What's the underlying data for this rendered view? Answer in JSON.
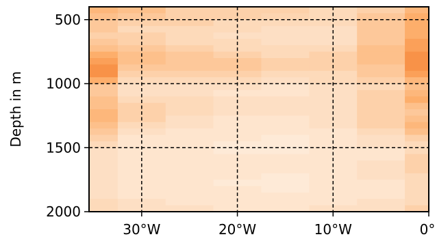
{
  "chart_data": {
    "type": "heatmap",
    "title": "",
    "xlabel": "",
    "ylabel": "Depth in m",
    "xlim": [
      -35.5,
      0
    ],
    "ylim": [
      2000,
      400
    ],
    "y_inverted": true,
    "grid": true,
    "colormap": "Oranges",
    "value_range": [
      0,
      1
    ],
    "x_ticks": [
      {
        "value": -30,
        "label": "30°W"
      },
      {
        "value": -20,
        "label": "20°W"
      },
      {
        "value": -10,
        "label": "10°W"
      },
      {
        "value": 0,
        "label": "0°"
      }
    ],
    "y_ticks": [
      {
        "value": 500,
        "label": "500"
      },
      {
        "value": 1000,
        "label": "1000"
      },
      {
        "value": 1500,
        "label": "1500"
      },
      {
        "value": 2000,
        "label": "2000"
      }
    ],
    "x": [
      -35,
      -30,
      -25,
      -20,
      -15,
      -10,
      -5,
      0
    ],
    "y": [
      425,
      475,
      525,
      575,
      625,
      675,
      725,
      775,
      825,
      875,
      925,
      975,
      1025,
      1075,
      1125,
      1175,
      1225,
      1275,
      1325,
      1375,
      1425,
      1475,
      1525,
      1575,
      1625,
      1675,
      1725,
      1775,
      1825,
      1875,
      1925,
      1975
    ],
    "z": [
      [
        0.45,
        0.4,
        0.3,
        0.3,
        0.3,
        0.25,
        0.3,
        0.45
      ],
      [
        0.4,
        0.35,
        0.3,
        0.3,
        0.28,
        0.25,
        0.35,
        0.5
      ],
      [
        0.35,
        0.3,
        0.3,
        0.25,
        0.25,
        0.25,
        0.35,
        0.5
      ],
      [
        0.35,
        0.25,
        0.25,
        0.25,
        0.2,
        0.2,
        0.35,
        0.5
      ],
      [
        0.3,
        0.3,
        0.25,
        0.2,
        0.2,
        0.2,
        0.35,
        0.5
      ],
      [
        0.35,
        0.3,
        0.25,
        0.25,
        0.2,
        0.2,
        0.35,
        0.55
      ],
      [
        0.4,
        0.35,
        0.3,
        0.25,
        0.25,
        0.25,
        0.4,
        0.55
      ],
      [
        0.5,
        0.4,
        0.35,
        0.3,
        0.25,
        0.3,
        0.4,
        0.6
      ],
      [
        0.55,
        0.4,
        0.35,
        0.35,
        0.3,
        0.3,
        0.4,
        0.6
      ],
      [
        0.6,
        0.35,
        0.35,
        0.35,
        0.3,
        0.3,
        0.35,
        0.6
      ],
      [
        0.6,
        0.3,
        0.3,
        0.3,
        0.25,
        0.25,
        0.35,
        0.55
      ],
      [
        0.5,
        0.25,
        0.25,
        0.25,
        0.2,
        0.25,
        0.3,
        0.45
      ],
      [
        0.35,
        0.2,
        0.2,
        0.2,
        0.15,
        0.2,
        0.25,
        0.4
      ],
      [
        0.35,
        0.2,
        0.2,
        0.15,
        0.15,
        0.2,
        0.3,
        0.45
      ],
      [
        0.4,
        0.25,
        0.25,
        0.2,
        0.2,
        0.2,
        0.3,
        0.5
      ],
      [
        0.4,
        0.3,
        0.25,
        0.2,
        0.2,
        0.2,
        0.3,
        0.4
      ],
      [
        0.45,
        0.3,
        0.25,
        0.2,
        0.2,
        0.2,
        0.3,
        0.35
      ],
      [
        0.45,
        0.3,
        0.2,
        0.15,
        0.15,
        0.2,
        0.3,
        0.4
      ],
      [
        0.4,
        0.25,
        0.2,
        0.15,
        0.15,
        0.2,
        0.3,
        0.45
      ],
      [
        0.35,
        0.2,
        0.15,
        0.15,
        0.15,
        0.15,
        0.25,
        0.4
      ],
      [
        0.3,
        0.15,
        0.15,
        0.15,
        0.1,
        0.15,
        0.2,
        0.3
      ],
      [
        0.25,
        0.15,
        0.15,
        0.1,
        0.1,
        0.15,
        0.2,
        0.25
      ],
      [
        0.2,
        0.15,
        0.15,
        0.1,
        0.1,
        0.15,
        0.15,
        0.25
      ],
      [
        0.2,
        0.15,
        0.15,
        0.15,
        0.15,
        0.15,
        0.15,
        0.3
      ],
      [
        0.2,
        0.15,
        0.15,
        0.15,
        0.15,
        0.15,
        0.2,
        0.3
      ],
      [
        0.2,
        0.15,
        0.15,
        0.15,
        0.15,
        0.15,
        0.2,
        0.3
      ],
      [
        0.2,
        0.15,
        0.15,
        0.15,
        0.1,
        0.15,
        0.2,
        0.25
      ],
      [
        0.2,
        0.15,
        0.15,
        0.1,
        0.1,
        0.15,
        0.15,
        0.25
      ],
      [
        0.2,
        0.15,
        0.15,
        0.15,
        0.1,
        0.15,
        0.15,
        0.25
      ],
      [
        0.2,
        0.15,
        0.15,
        0.15,
        0.15,
        0.15,
        0.15,
        0.25
      ],
      [
        0.25,
        0.2,
        0.15,
        0.15,
        0.15,
        0.15,
        0.2,
        0.25
      ],
      [
        0.25,
        0.2,
        0.2,
        0.15,
        0.15,
        0.2,
        0.2,
        0.3
      ]
    ]
  }
}
